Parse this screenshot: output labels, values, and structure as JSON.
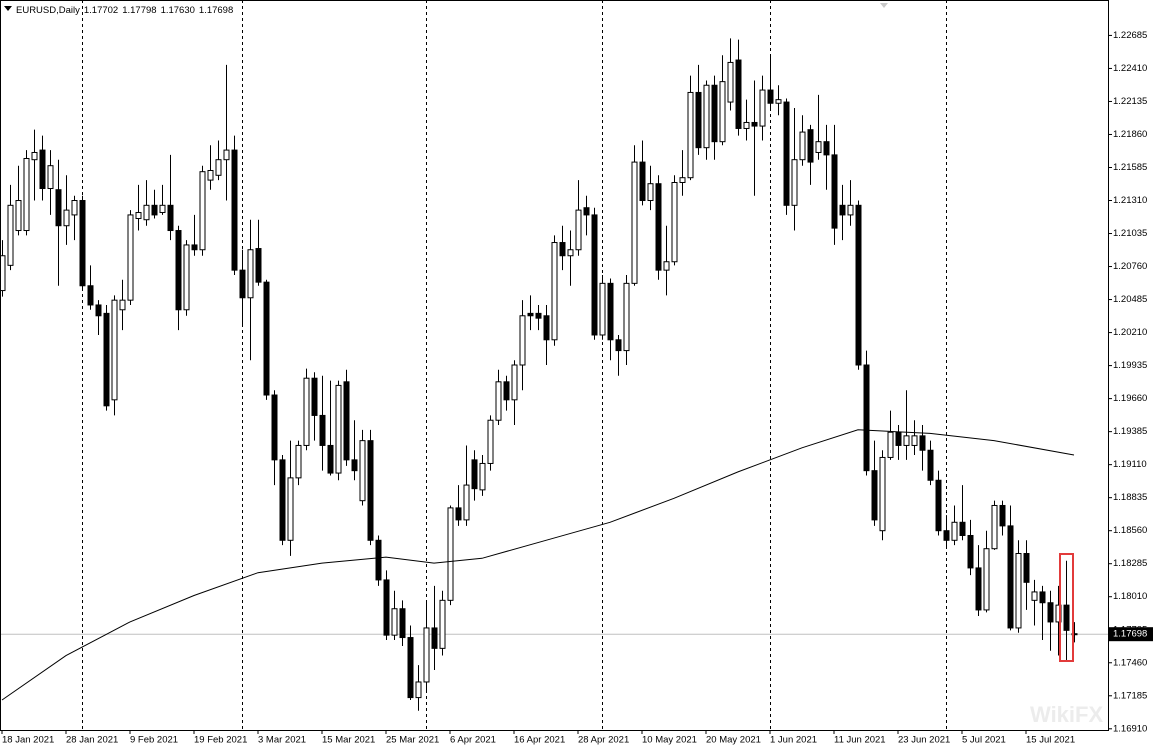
{
  "chart_data": {
    "type": "candlestick",
    "header": {
      "symbol": "EURUSD,Daily",
      "ohlc": [
        "1.17702",
        "1.17798",
        "1.17630",
        "1.17698"
      ]
    },
    "up_color": "#ffffff",
    "down_color": "#000000",
    "open": [
      1.2056,
      1.2077,
      1.2106,
      1.2106,
      1.2165,
      1.2173,
      1.2141,
      1.214,
      1.211,
      1.2119,
      1.2131,
      1.206,
      1.2044,
      1.2037,
      1.1965,
      1.204,
      1.2048,
      1.2116,
      1.2115,
      1.2127,
      1.2121,
      1.2127,
      1.2106,
      1.204,
      1.2094,
      1.209,
      1.2148,
      1.2152,
      1.2165,
      1.2173,
      1.2073,
      1.205,
      1.2091,
      1.2063,
      1.1969,
      1.1915,
      1.1848,
      1.19,
      1.1927,
      1.1983,
      1.1952,
      1.1927,
      1.1904,
      1.198,
      1.1915,
      1.1881,
      1.1931,
      1.1848,
      1.1815,
      1.1769,
      1.1791,
      1.1767,
      1.1717,
      1.173,
      1.1775,
      1.1758,
      1.1798,
      1.1875,
      1.1865,
      1.1915,
      1.189,
      1.1912,
      1.1948,
      1.198,
      1.1965,
      1.1994,
      1.2037,
      1.2037,
      1.2035,
      1.2015,
      1.2096,
      1.2085,
      1.209,
      1.2125,
      1.2119,
      1.2019,
      1.2062,
      1.2015,
      1.2006,
      1.2062,
      1.2163,
      1.2131,
      1.2145,
      1.2073,
      1.208,
      1.2146,
      1.215,
      1.2221,
      1.2175,
      1.2227,
      1.218,
      1.2213,
      1.2248,
      1.2191,
      1.2196,
      1.2193,
      1.2223,
      1.2212,
      1.2213,
      1.2127,
      1.2165,
      1.219,
      1.2171,
      1.218,
      1.2169,
      1.2127,
      1.2119,
      1.2127,
      1.1994,
      1.1906,
      1.1856,
      1.1917,
      1.1938,
      1.1927,
      1.1927,
      1.1935,
      1.1923,
      1.1898,
      1.1856,
      1.1848,
      1.1863,
      1.1852,
      1.1825,
      1.179,
      1.1841,
      1.1877,
      1.186,
      1.1775,
      1.1837,
      1.1798,
      1.1805,
      1.1796,
      1.178,
      1.1794,
      1.17702
    ],
    "high": [
      1.2098,
      1.2144,
      1.216,
      1.2173,
      1.219,
      1.2185,
      1.2173,
      1.2165,
      1.2152,
      1.2135,
      1.2135,
      1.2077,
      1.2048,
      1.2044,
      1.2052,
      1.2065,
      1.2123,
      1.2144,
      1.2148,
      1.214,
      1.2144,
      1.2169,
      1.211,
      1.2098,
      1.2119,
      1.216,
      1.2177,
      1.2181,
      1.2244,
      1.2185,
      1.209,
      1.2115,
      1.2115,
      1.2065,
      1.1973,
      1.1919,
      1.1931,
      1.1931,
      1.1991,
      1.1988,
      1.1985,
      1.1981,
      1.1981,
      1.199,
      1.1948,
      1.194,
      1.194,
      1.1852,
      1.1823,
      1.1806,
      1.1798,
      1.1777,
      1.1744,
      1.1798,
      1.181,
      1.1806,
      1.1877,
      1.1894,
      1.1927,
      1.1923,
      1.1919,
      1.1952,
      1.199,
      1.1985,
      1.1998,
      1.2048,
      1.2052,
      1.2044,
      1.2044,
      1.2102,
      1.211,
      1.2106,
      1.2148,
      1.2135,
      1.2125,
      1.2069,
      1.2066,
      1.2019,
      1.2069,
      1.2177,
      1.2181,
      1.216,
      1.2152,
      1.211,
      1.2152,
      1.2173,
      1.2235,
      1.2244,
      1.2231,
      1.2235,
      1.2252,
      1.2266,
      1.2265,
      1.2215,
      1.2231,
      1.2235,
      1.2252,
      1.2227,
      1.2216,
      1.2208,
      1.2202,
      1.2194,
      1.2219,
      1.2194,
      1.2194,
      1.2144,
      1.2148,
      1.2131,
      1.2006,
      1.1931,
      1.1923,
      1.1956,
      1.1944,
      1.1973,
      1.1948,
      1.1944,
      1.1931,
      1.1906,
      1.1869,
      1.1877,
      1.1894,
      1.1865,
      1.1844,
      1.1856,
      1.1881,
      1.1881,
      1.1877,
      1.1848,
      1.1848,
      1.1815,
      1.181,
      1.1806,
      1.181,
      1.1831,
      1.17798
    ],
    "low": [
      1.2051,
      1.2073,
      1.2102,
      1.2102,
      1.2131,
      1.2131,
      1.2119,
      1.206,
      1.2094,
      1.2098,
      1.2056,
      1.204,
      1.2019,
      1.1956,
      1.1952,
      1.2023,
      1.2044,
      1.2106,
      1.211,
      1.2116,
      1.2119,
      1.2098,
      1.2023,
      1.2035,
      1.2085,
      1.2085,
      1.214,
      1.2148,
      1.2131,
      1.2069,
      1.2027,
      1.1998,
      1.206,
      1.1965,
      1.1894,
      1.1844,
      1.1835,
      1.1894,
      1.1923,
      1.1931,
      1.1906,
      1.1902,
      1.1898,
      1.191,
      1.1898,
      1.1877,
      1.1844,
      1.181,
      1.1765,
      1.1765,
      1.176,
      1.1715,
      1.1706,
      1.1723,
      1.174,
      1.1752,
      1.1794,
      1.186,
      1.186,
      1.1881,
      1.1885,
      1.1906,
      1.1944,
      1.1956,
      1.1944,
      1.1973,
      1.2023,
      1.2023,
      1.1994,
      1.201,
      1.2073,
      1.206,
      1.2085,
      1.2102,
      1.2015,
      1.2015,
      1.1998,
      1.1985,
      1.1994,
      1.206,
      1.2127,
      1.2123,
      1.2065,
      1.2052,
      1.2077,
      1.2135,
      1.2148,
      1.2169,
      1.2165,
      1.2165,
      1.2177,
      1.2206,
      1.2185,
      1.2181,
      1.2135,
      1.2181,
      1.2206,
      1.2202,
      1.2119,
      1.2106,
      1.216,
      1.2144,
      1.2165,
      1.214,
      1.2094,
      1.2098,
      1.211,
      1.199,
      1.1902,
      1.186,
      1.1848,
      1.1915,
      1.1915,
      1.1915,
      1.1919,
      1.1906,
      1.1894,
      1.1852,
      1.1841,
      1.1844,
      1.1848,
      1.1819,
      1.1785,
      1.1788,
      1.184,
      1.1852,
      1.1773,
      1.1771,
      1.179,
      1.1777,
      1.1765,
      1.1756,
      1.1752,
      1.1748,
      1.1763
    ],
    "close": [
      1.2085,
      1.2127,
      1.2131,
      1.2166,
      1.2171,
      1.2141,
      1.216,
      1.211,
      1.2123,
      1.2131,
      1.206,
      1.2044,
      1.2035,
      1.196,
      1.2048,
      1.2048,
      1.2119,
      1.2121,
      1.2127,
      1.2119,
      1.2127,
      1.2106,
      1.204,
      1.2094,
      1.209,
      1.2155,
      1.2156,
      1.2165,
      1.2173,
      1.2073,
      1.205,
      1.209,
      1.2063,
      1.1969,
      1.1915,
      1.1848,
      1.19,
      1.1927,
      1.1983,
      1.1952,
      1.1927,
      1.1904,
      1.1977,
      1.1915,
      1.1906,
      1.1931,
      1.1848,
      1.1815,
      1.1769,
      1.1791,
      1.1767,
      1.1717,
      1.173,
      1.1775,
      1.1758,
      1.1798,
      1.1875,
      1.1865,
      1.1894,
      1.1891,
      1.1912,
      1.1948,
      1.198,
      1.1965,
      1.1994,
      1.2035,
      1.2035,
      1.2033,
      1.2015,
      1.2096,
      1.2085,
      1.209,
      1.2123,
      1.2119,
      1.2019,
      1.2062,
      1.2015,
      1.2006,
      1.2062,
      1.2163,
      1.2131,
      1.2145,
      1.2073,
      1.208,
      1.2146,
      1.215,
      1.2221,
      1.2175,
      1.2227,
      1.218,
      1.223,
      1.2246,
      1.2191,
      1.2196,
      1.2193,
      1.2223,
      1.2212,
      1.2215,
      1.2127,
      1.2165,
      1.2188,
      1.2163,
      1.218,
      1.2169,
      1.2108,
      1.2119,
      1.2127,
      1.1994,
      1.1906,
      1.1865,
      1.1917,
      1.1938,
      1.1927,
      1.1935,
      1.1935,
      1.1923,
      1.1898,
      1.1856,
      1.1848,
      1.1863,
      1.1852,
      1.1825,
      1.179,
      1.1841,
      1.1877,
      1.186,
      1.1775,
      1.1837,
      1.1813,
      1.1805,
      1.1796,
      1.178,
      1.1794,
      1.1773,
      1.17698
    ],
    "moving_average": {
      "color": "#000000",
      "x": [
        0,
        8,
        16,
        24,
        32,
        40,
        48,
        54,
        60,
        68,
        76,
        84,
        92,
        100,
        107,
        116,
        124,
        134
      ],
      "values": [
        1.1715,
        1.1752,
        1.178,
        1.1802,
        1.1821,
        1.1829,
        1.1834,
        1.1829,
        1.1833,
        1.1848,
        1.1863,
        1.1883,
        1.1905,
        1.1925,
        1.194,
        1.1937,
        1.1931,
        1.1919
      ]
    },
    "current_price": {
      "value": 1.17698,
      "label": "1.17698"
    },
    "period_separators": [
      10,
      30,
      53,
      75,
      96,
      118
    ],
    "xlim": [
      -0.25,
      138.25
    ],
    "ylim": [
      1.169,
      1.2298
    ],
    "xticks": [
      {
        "value": 0,
        "label": "18 Jan 2021"
      },
      {
        "value": 8,
        "label": "28 Jan 2021"
      },
      {
        "value": 16,
        "label": "9 Feb 2021"
      },
      {
        "value": 24,
        "label": "19 Feb 2021"
      },
      {
        "value": 32,
        "label": "3 Mar 2021"
      },
      {
        "value": 40,
        "label": "15 Mar 2021"
      },
      {
        "value": 48,
        "label": "25 Mar 2021"
      },
      {
        "value": 56,
        "label": "6 Apr 2021"
      },
      {
        "value": 64,
        "label": "16 Apr 2021"
      },
      {
        "value": 72,
        "label": "28 Apr 2021"
      },
      {
        "value": 80,
        "label": "10 May 2021"
      },
      {
        "value": 88,
        "label": "20 May 2021"
      },
      {
        "value": 96,
        "label": "1 Jun 2021"
      },
      {
        "value": 104,
        "label": "11 Jun 2021"
      },
      {
        "value": 112,
        "label": "23 Jun 2021"
      },
      {
        "value": 120,
        "label": "5 Jul 2021"
      },
      {
        "value": 128,
        "label": "15 Jul 2021"
      }
    ],
    "yticks": [
      {
        "value": 1.22685,
        "label": "1.22685"
      },
      {
        "value": 1.2241,
        "label": "1.22410"
      },
      {
        "value": 1.22135,
        "label": "1.22135"
      },
      {
        "value": 1.2186,
        "label": "1.21860"
      },
      {
        "value": 1.21585,
        "label": "1.21585"
      },
      {
        "value": 1.2131,
        "label": "1.21310"
      },
      {
        "value": 1.21035,
        "label": "1.21035"
      },
      {
        "value": 1.2076,
        "label": "1.20760"
      },
      {
        "value": 1.20485,
        "label": "1.20485"
      },
      {
        "value": 1.2021,
        "label": "1.20210"
      },
      {
        "value": 1.19935,
        "label": "1.19935"
      },
      {
        "value": 1.1966,
        "label": "1.19660"
      },
      {
        "value": 1.19385,
        "label": "1.19385"
      },
      {
        "value": 1.1911,
        "label": "1.19110"
      },
      {
        "value": 1.18835,
        "label": "1.18835"
      },
      {
        "value": 1.1856,
        "label": "1.18560"
      },
      {
        "value": 1.18285,
        "label": "1.18285"
      },
      {
        "value": 1.1801,
        "label": "1.18010"
      },
      {
        "value": 1.17735,
        "label": "1.17735"
      },
      {
        "value": 1.1746,
        "label": "1.17460"
      },
      {
        "value": 1.17185,
        "label": "1.17185"
      },
      {
        "value": 1.1691,
        "label": "1.16910"
      }
    ],
    "watermark": "WikiFX"
  }
}
